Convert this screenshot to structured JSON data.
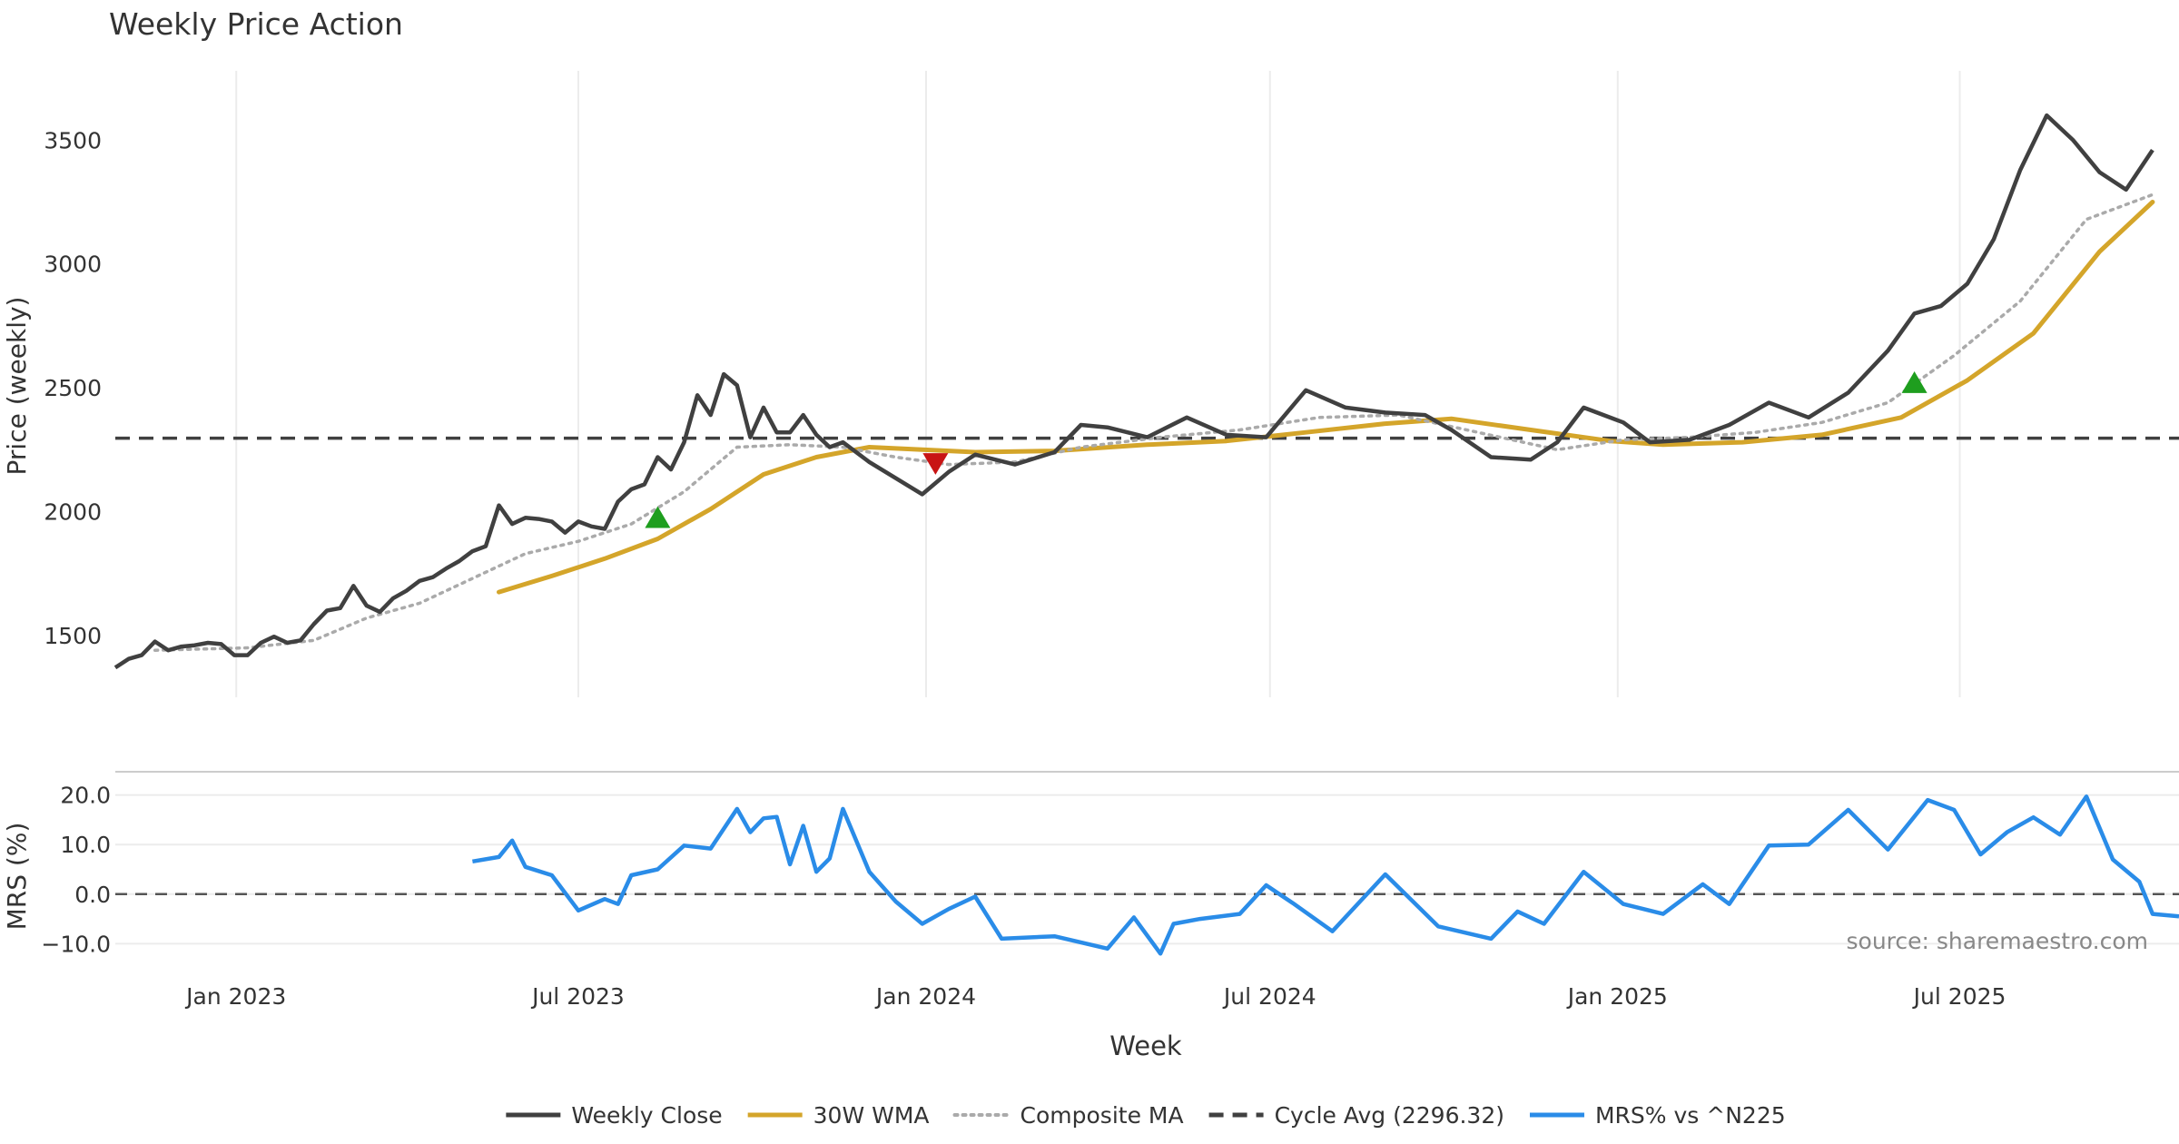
{
  "chart_data": {
    "type": "line",
    "title": "Weekly Price Action",
    "xlabel": "Week",
    "source": "source: sharemaestro.com",
    "x_ticks": [
      "Jan 2023",
      "Jul 2023",
      "Jan 2024",
      "Jul 2024",
      "Jan 2025",
      "Jul 2025"
    ],
    "price_panel": {
      "ylabel": "Price (weekly)",
      "ylim": [
        1250,
        3780
      ],
      "yticks": [
        "1500",
        "2000",
        "2500",
        "3000",
        "3500"
      ],
      "grid": "vertical",
      "series": [
        {
          "name": "Weekly Close",
          "color": "#404040",
          "style": "solid",
          "anchors": [
            [
              "2022-10-29",
              1370
            ],
            [
              "2022-11-05",
              1405
            ],
            [
              "2022-11-12",
              1420
            ],
            [
              "2022-11-19",
              1475
            ],
            [
              "2022-11-26",
              1440
            ],
            [
              "2022-12-03",
              1455
            ],
            [
              "2022-12-10",
              1460
            ],
            [
              "2022-12-17",
              1470
            ],
            [
              "2022-12-24",
              1465
            ],
            [
              "2022-12-31",
              1420
            ],
            [
              "2023-01-07",
              1420
            ],
            [
              "2023-01-14",
              1470
            ],
            [
              "2023-01-21",
              1495
            ],
            [
              "2023-01-28",
              1470
            ],
            [
              "2023-02-04",
              1480
            ],
            [
              "2023-02-11",
              1545
            ],
            [
              "2023-02-18",
              1600
            ],
            [
              "2023-02-25",
              1610
            ],
            [
              "2023-03-04",
              1700
            ],
            [
              "2023-03-11",
              1620
            ],
            [
              "2023-03-18",
              1595
            ],
            [
              "2023-03-25",
              1650
            ],
            [
              "2023-04-01",
              1680
            ],
            [
              "2023-04-08",
              1720
            ],
            [
              "2023-04-15",
              1735
            ],
            [
              "2023-04-22",
              1770
            ],
            [
              "2023-04-29",
              1800
            ],
            [
              "2023-05-06",
              1840
            ],
            [
              "2023-05-13",
              1860
            ],
            [
              "2023-05-20",
              2025
            ],
            [
              "2023-05-27",
              1950
            ],
            [
              "2023-06-03",
              1975
            ],
            [
              "2023-06-10",
              1970
            ],
            [
              "2023-06-17",
              1960
            ],
            [
              "2023-06-24",
              1915
            ],
            [
              "2023-07-01",
              1960
            ],
            [
              "2023-07-08",
              1940
            ],
            [
              "2023-07-15",
              1930
            ],
            [
              "2023-07-22",
              2040
            ],
            [
              "2023-07-29",
              2090
            ],
            [
              "2023-08-05",
              2110
            ],
            [
              "2023-08-12",
              2220
            ],
            [
              "2023-08-19",
              2170
            ],
            [
              "2023-08-26",
              2280
            ],
            [
              "2023-09-02",
              2470
            ],
            [
              "2023-09-09",
              2390
            ],
            [
              "2023-09-16",
              2555
            ],
            [
              "2023-09-23",
              2510
            ],
            [
              "2023-09-30",
              2300
            ],
            [
              "2023-10-07",
              2420
            ],
            [
              "2023-10-14",
              2320
            ],
            [
              "2023-10-21",
              2320
            ],
            [
              "2023-10-28",
              2390
            ],
            [
              "2023-11-04",
              2310
            ],
            [
              "2023-11-11",
              2260
            ],
            [
              "2023-11-18",
              2280
            ],
            [
              "2023-12-02",
              2200
            ],
            [
              "2023-12-30",
              2070
            ],
            [
              "2024-01-13",
              2160
            ],
            [
              "2024-01-27",
              2230
            ],
            [
              "2024-02-17",
              2190
            ],
            [
              "2024-03-09",
              2240
            ],
            [
              "2024-03-23",
              2350
            ],
            [
              "2024-04-06",
              2340
            ],
            [
              "2024-04-27",
              2300
            ],
            [
              "2024-05-18",
              2380
            ],
            [
              "2024-06-08",
              2310
            ],
            [
              "2024-06-29",
              2300
            ],
            [
              "2024-07-20",
              2490
            ],
            [
              "2024-08-10",
              2420
            ],
            [
              "2024-08-31",
              2400
            ],
            [
              "2024-09-21",
              2390
            ],
            [
              "2024-10-05",
              2330
            ],
            [
              "2024-10-26",
              2220
            ],
            [
              "2024-11-16",
              2210
            ],
            [
              "2024-11-30",
              2280
            ],
            [
              "2024-12-14",
              2420
            ],
            [
              "2025-01-04",
              2360
            ],
            [
              "2025-01-18",
              2280
            ],
            [
              "2025-02-08",
              2290
            ],
            [
              "2025-03-01",
              2350
            ],
            [
              "2025-03-22",
              2440
            ],
            [
              "2025-04-12",
              2380
            ],
            [
              "2025-05-03",
              2480
            ],
            [
              "2025-05-24",
              2650
            ],
            [
              "2025-06-07",
              2800
            ],
            [
              "2025-06-21",
              2830
            ],
            [
              "2025-07-05",
              2920
            ],
            [
              "2025-07-19",
              3100
            ],
            [
              "2025-08-02",
              3380
            ],
            [
              "2025-08-16",
              3600
            ],
            [
              "2025-08-30",
              3500
            ],
            [
              "2025-09-13",
              3370
            ],
            [
              "2025-09-27",
              3300
            ],
            [
              "2025-10-11",
              3460
            ]
          ]
        },
        {
          "name": "30W WMA",
          "color": "#D4A52A",
          "style": "solid",
          "anchors": [
            [
              "2023-05-20",
              1675
            ],
            [
              "2023-06-17",
              1740
            ],
            [
              "2023-07-15",
              1810
            ],
            [
              "2023-08-12",
              1890
            ],
            [
              "2023-09-09",
              2010
            ],
            [
              "2023-10-07",
              2150
            ],
            [
              "2023-11-04",
              2220
            ],
            [
              "2023-12-02",
              2260
            ],
            [
              "2023-12-30",
              2250
            ],
            [
              "2024-01-27",
              2240
            ],
            [
              "2024-03-09",
              2245
            ],
            [
              "2024-04-27",
              2270
            ],
            [
              "2024-06-08",
              2285
            ],
            [
              "2024-07-20",
              2320
            ],
            [
              "2024-08-31",
              2355
            ],
            [
              "2024-10-05",
              2375
            ],
            [
              "2024-11-16",
              2330
            ],
            [
              "2024-12-28",
              2285
            ],
            [
              "2025-01-25",
              2270
            ],
            [
              "2025-03-08",
              2280
            ],
            [
              "2025-04-19",
              2310
            ],
            [
              "2025-05-31",
              2380
            ],
            [
              "2025-07-05",
              2530
            ],
            [
              "2025-08-09",
              2720
            ],
            [
              "2025-09-13",
              3050
            ],
            [
              "2025-10-11",
              3250
            ]
          ]
        },
        {
          "name": "Composite MA",
          "color": "#aaaaaa",
          "style": "dotted",
          "anchors": [
            [
              "2022-11-19",
              1440
            ],
            [
              "2023-01-07",
              1450
            ],
            [
              "2023-02-11",
              1480
            ],
            [
              "2023-03-11",
              1570
            ],
            [
              "2023-04-08",
              1630
            ],
            [
              "2023-05-06",
              1730
            ],
            [
              "2023-06-03",
              1830
            ],
            [
              "2023-07-01",
              1880
            ],
            [
              "2023-07-29",
              1950
            ],
            [
              "2023-08-26",
              2080
            ],
            [
              "2023-09-23",
              2260
            ],
            [
              "2023-10-21",
              2270
            ],
            [
              "2023-11-18",
              2260
            ],
            [
              "2023-12-16",
              2220
            ],
            [
              "2024-01-13",
              2190
            ],
            [
              "2024-02-17",
              2200
            ],
            [
              "2024-03-23",
              2260
            ],
            [
              "2024-05-04",
              2300
            ],
            [
              "2024-06-15",
              2330
            ],
            [
              "2024-07-27",
              2380
            ],
            [
              "2024-09-07",
              2390
            ],
            [
              "2024-10-19",
              2320
            ],
            [
              "2024-11-30",
              2250
            ],
            [
              "2025-01-04",
              2290
            ],
            [
              "2025-02-08",
              2300
            ],
            [
              "2025-03-15",
              2320
            ],
            [
              "2025-04-19",
              2360
            ],
            [
              "2025-05-24",
              2440
            ],
            [
              "2025-06-28",
              2630
            ],
            [
              "2025-08-02",
              2850
            ],
            [
              "2025-09-06",
              3180
            ],
            [
              "2025-10-11",
              3280
            ]
          ]
        },
        {
          "name": "Cycle Avg (2296.32)",
          "color": "#404040",
          "style": "dashed",
          "value": 2296.32
        }
      ],
      "markers": [
        {
          "type": "buy",
          "date": "2023-08-12",
          "value": 1975,
          "color": "#1e9e1e"
        },
        {
          "type": "sell",
          "date": "2024-01-06",
          "value": 2195,
          "color": "#c81414"
        },
        {
          "type": "buy",
          "date": "2025-06-07",
          "value": 2520,
          "color": "#1e9e1e"
        }
      ]
    },
    "mrs_panel": {
      "ylabel": "MRS (%)",
      "ylim": [
        -12.5,
        22.5
      ],
      "yticks": [
        "20.0",
        "10.0",
        "0.0",
        "−10.0"
      ],
      "zero_line": "dashed",
      "series": [
        {
          "name": "MRS% vs ^N225",
          "color": "#2A8CE8",
          "anchors": [
            [
              "2023-05-06",
              6.6
            ],
            [
              "2023-05-20",
              7.5
            ],
            [
              "2023-05-27",
              10.8
            ],
            [
              "2023-06-03",
              5.5
            ],
            [
              "2023-06-17",
              3.8
            ],
            [
              "2023-07-01",
              -3.3
            ],
            [
              "2023-07-15",
              -1.0
            ],
            [
              "2023-07-22",
              -2.0
            ],
            [
              "2023-07-29",
              3.8
            ],
            [
              "2023-08-12",
              5.0
            ],
            [
              "2023-08-26",
              9.8
            ],
            [
              "2023-09-09",
              9.2
            ],
            [
              "2023-09-23",
              17.2
            ],
            [
              "2023-09-30",
              12.5
            ],
            [
              "2023-10-07",
              15.3
            ],
            [
              "2023-10-14",
              15.6
            ],
            [
              "2023-10-21",
              6.0
            ],
            [
              "2023-10-28",
              13.8
            ],
            [
              "2023-11-04",
              4.5
            ],
            [
              "2023-11-11",
              7.2
            ],
            [
              "2023-11-18",
              17.2
            ],
            [
              "2023-12-02",
              4.5
            ],
            [
              "2023-12-16",
              -1.5
            ],
            [
              "2023-12-30",
              -6.0
            ],
            [
              "2024-01-13",
              -3.0
            ],
            [
              "2024-01-27",
              -0.5
            ],
            [
              "2024-02-10",
              -9.0
            ],
            [
              "2024-03-09",
              -8.5
            ],
            [
              "2024-04-06",
              -11.0
            ],
            [
              "2024-04-20",
              -4.7
            ],
            [
              "2024-05-04",
              -12.0
            ],
            [
              "2024-05-11",
              -6.0
            ],
            [
              "2024-05-25",
              -5.0
            ],
            [
              "2024-06-15",
              -4.0
            ],
            [
              "2024-06-29",
              1.8
            ],
            [
              "2024-07-13",
              -1.8
            ],
            [
              "2024-08-03",
              -7.5
            ],
            [
              "2024-08-31",
              4.0
            ],
            [
              "2024-09-28",
              -6.5
            ],
            [
              "2024-10-26",
              -9.0
            ],
            [
              "2024-11-09",
              -3.5
            ],
            [
              "2024-11-23",
              -6.0
            ],
            [
              "2024-12-14",
              4.5
            ],
            [
              "2025-01-04",
              -2.0
            ],
            [
              "2025-01-25",
              -4.0
            ],
            [
              "2025-02-15",
              2.0
            ],
            [
              "2025-03-01",
              -2.0
            ],
            [
              "2025-03-22",
              9.8
            ],
            [
              "2025-04-12",
              10.0
            ],
            [
              "2025-05-03",
              17.0
            ],
            [
              "2025-05-24",
              9.0
            ],
            [
              "2025-06-14",
              19.0
            ],
            [
              "2025-06-28",
              17.0
            ],
            [
              "2025-07-12",
              8.0
            ],
            [
              "2025-07-26",
              12.5
            ],
            [
              "2025-08-09",
              15.5
            ],
            [
              "2025-08-23",
              12.0
            ],
            [
              "2025-09-06",
              19.7
            ],
            [
              "2025-09-20",
              7.0
            ],
            [
              "2025-10-04",
              2.5
            ],
            [
              "2025-10-11",
              -4.0
            ],
            [
              "2025-10-25",
              -4.5
            ]
          ]
        }
      ]
    },
    "legend": [
      {
        "label": "Weekly Close",
        "color": "#404040",
        "style": "solid"
      },
      {
        "label": "30W WMA",
        "color": "#D4A52A",
        "style": "solid"
      },
      {
        "label": "Composite MA",
        "color": "#aaaaaa",
        "style": "dotted"
      },
      {
        "label": "Cycle Avg (2296.32)",
        "color": "#404040",
        "style": "dashed"
      },
      {
        "label": "MRS% vs ^N225",
        "color": "#2A8CE8",
        "style": "solid"
      }
    ],
    "legend_position": "bottom-center"
  }
}
